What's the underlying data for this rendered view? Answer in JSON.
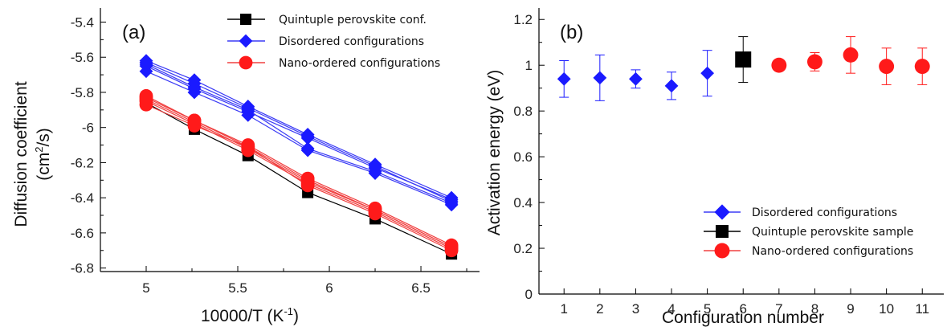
{
  "colors": {
    "quintuple": "#000000",
    "disordered": "#1a1aff",
    "nano": "#ff1a1a",
    "disordered_line": "#3b3bf5",
    "nano_line": "#f04040"
  },
  "chart_data": [
    {
      "panel_label": "(a)",
      "type": "line",
      "xlabel": "10000/T (K",
      "xlabel_sup": "-1",
      "xlabel_end": ")",
      "ylabel_line1": "Diffusion coefficient",
      "ylabel_line2": "(cm",
      "ylabel_sup": "2",
      "ylabel_end": "/s)",
      "xlim": [
        4.75,
        6.82
      ],
      "ylim": [
        -6.82,
        -5.32
      ],
      "xticks": [
        5,
        5.5,
        6,
        6.5
      ],
      "xtick_labels": [
        "5",
        "5.5",
        "6",
        "6.5"
      ],
      "yticks": [
        -6.8,
        -6.6,
        -6.4,
        -6.2,
        -6.0,
        -5.8,
        -5.6,
        -5.4
      ],
      "ytick_labels": [
        "-6.8",
        "-6.6",
        "-6.4",
        "-6.2",
        "-6",
        "-5.8",
        "-5.6",
        "-5.4"
      ],
      "x": [
        5.0,
        5.263,
        5.556,
        5.882,
        6.25,
        6.667
      ],
      "legend": [
        "Quintuple perovskite conf.",
        "Disordered configurations",
        "Nano-ordered configurations"
      ],
      "legend_position": "top-right",
      "series": [
        {
          "group": "quintuple",
          "values": [
            -5.86,
            -6.01,
            -6.16,
            -6.37,
            -6.52,
            -6.72
          ]
        },
        {
          "group": "disordered",
          "values": [
            -5.62,
            -5.73,
            -5.88,
            -6.04,
            -6.21,
            -6.4
          ]
        },
        {
          "group": "disordered",
          "values": [
            -5.64,
            -5.77,
            -5.9,
            -6.12,
            -6.25,
            -6.43
          ]
        },
        {
          "group": "disordered",
          "values": [
            -5.65,
            -5.78,
            -5.91,
            -6.06,
            -6.23,
            -6.41
          ]
        },
        {
          "group": "disordered",
          "values": [
            -5.68,
            -5.8,
            -5.93,
            -6.13,
            -6.26,
            -6.44
          ]
        },
        {
          "group": "disordered",
          "values": [
            -5.63,
            -5.75,
            -5.89,
            -6.05,
            -6.22,
            -6.42
          ]
        },
        {
          "group": "nano",
          "values": [
            -5.82,
            -5.96,
            -6.1,
            -6.29,
            -6.46,
            -6.67
          ]
        },
        {
          "group": "nano",
          "values": [
            -5.84,
            -5.97,
            -6.12,
            -6.31,
            -6.47,
            -6.68
          ]
        },
        {
          "group": "nano",
          "values": [
            -5.85,
            -5.98,
            -6.13,
            -6.32,
            -6.48,
            -6.69
          ]
        },
        {
          "group": "nano",
          "values": [
            -5.87,
            -5.99,
            -6.11,
            -6.33,
            -6.49,
            -6.7
          ]
        },
        {
          "group": "nano",
          "values": [
            -5.83,
            -5.96,
            -6.11,
            -6.3,
            -6.47,
            -6.68
          ]
        }
      ]
    },
    {
      "panel_label": "(b)",
      "type": "scatter",
      "xlabel": "Configuration number",
      "ylabel": "Activation energy (eV)",
      "xlim": [
        0.3,
        11.6
      ],
      "ylim": [
        0,
        1.25
      ],
      "xticks": [
        1,
        2,
        3,
        4,
        5,
        6,
        7,
        8,
        9,
        10,
        11
      ],
      "xtick_labels": [
        "1",
        "2",
        "3",
        "4",
        "5",
        "6",
        "7",
        "8",
        "9",
        "10",
        "11"
      ],
      "yticks": [
        0,
        0.2,
        0.4,
        0.6,
        0.8,
        1.0,
        1.2
      ],
      "ytick_labels": [
        "0",
        "0.2",
        "0.4",
        "0.6",
        "0.8",
        "1",
        "1.2"
      ],
      "legend": [
        "Disordered configurations",
        "Quintuple perovskite sample",
        "Nano-ordered configurations"
      ],
      "legend_position": "bottom-right",
      "points": [
        {
          "x": 1,
          "y": 0.94,
          "err": 0.08,
          "group": "disordered"
        },
        {
          "x": 2,
          "y": 0.945,
          "err": 0.1,
          "group": "disordered"
        },
        {
          "x": 3,
          "y": 0.94,
          "err": 0.04,
          "group": "disordered"
        },
        {
          "x": 4,
          "y": 0.91,
          "err": 0.06,
          "group": "disordered"
        },
        {
          "x": 5,
          "y": 0.965,
          "err": 0.1,
          "group": "disordered"
        },
        {
          "x": 6,
          "y": 1.025,
          "err": 0.1,
          "group": "quintuple"
        },
        {
          "x": 7,
          "y": 1.0,
          "err": 0.02,
          "group": "nano"
        },
        {
          "x": 8,
          "y": 1.015,
          "err": 0.04,
          "group": "nano"
        },
        {
          "x": 9,
          "y": 1.045,
          "err": 0.08,
          "group": "nano"
        },
        {
          "x": 10,
          "y": 0.995,
          "err": 0.08,
          "group": "nano"
        },
        {
          "x": 11,
          "y": 0.995,
          "err": 0.08,
          "group": "nano"
        }
      ]
    }
  ]
}
